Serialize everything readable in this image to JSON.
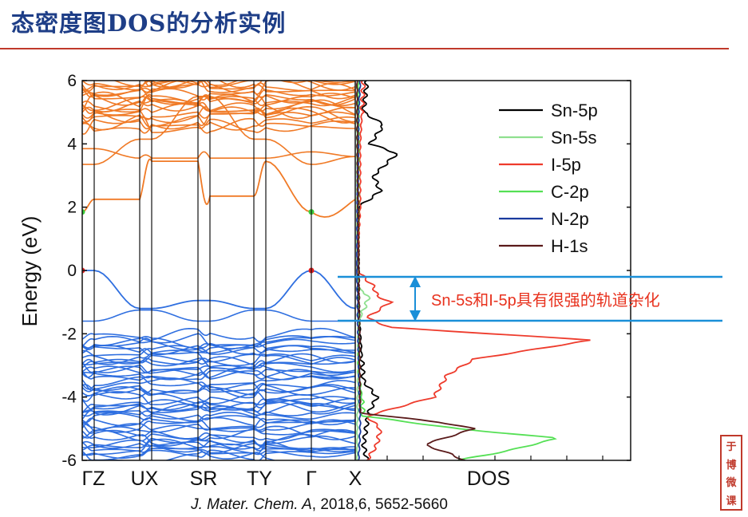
{
  "title": "态密度图DOS的分析实例",
  "citation": {
    "journal": "J. Mater. Chem. A",
    "rest": ", 2018,6, 5652-5660"
  },
  "annotation": "Sn-5s和I-5p具有很强的轨道杂化",
  "seal": [
    "于",
    "博",
    "微",
    "课"
  ],
  "chart_data": [
    {
      "type": "line",
      "ylabel": "Energy (eV)",
      "ylim": [
        -6,
        6
      ],
      "yticks": [
        "6",
        "4",
        "2",
        "0",
        "-2",
        "-4",
        "-6"
      ],
      "kpath": [
        "Γ",
        "Z",
        "U",
        "X",
        "S",
        "R",
        "T",
        "Y",
        "Γ",
        "X"
      ],
      "kpath_labels": [
        "ΓZ",
        "UX",
        "SR",
        "TY",
        "Γ",
        "X"
      ],
      "valence_band_max_eV": 0,
      "conduction_band_min_eV": 1.85,
      "band_colors": {
        "conduction": "#f07a26",
        "valence": "#2f6fe0"
      }
    },
    {
      "type": "line",
      "xlabel": "DOS",
      "ylim": [
        -6,
        6
      ],
      "legend_placement": "top-right",
      "series": [
        {
          "name": "Sn-5p",
          "color": "#000000",
          "points": [
            [
              -6,
              0.3
            ],
            [
              -5.5,
              0.2
            ],
            [
              -4.5,
              0.35
            ],
            [
              -4,
              0.6
            ],
            [
              -3.5,
              0.2
            ],
            [
              -2,
              0.1
            ],
            [
              -1,
              0.05
            ],
            [
              2,
              0.05
            ],
            [
              2.5,
              0.7
            ],
            [
              3,
              0.5
            ],
            [
              3.5,
              1.0
            ],
            [
              3.7,
              1.2
            ],
            [
              4,
              0.4
            ],
            [
              4.6,
              0.8
            ],
            [
              5,
              0.2
            ],
            [
              6,
              0.3
            ]
          ]
        },
        {
          "name": "Sn-5s",
          "color": "#8fe08f",
          "points": [
            [
              -6,
              0
            ],
            [
              -2,
              0.05
            ],
            [
              -1.5,
              0.1
            ],
            [
              -1,
              0.3
            ],
            [
              -0.8,
              0.35
            ],
            [
              -0.6,
              0.1
            ],
            [
              -0.3,
              0
            ],
            [
              6,
              0
            ]
          ]
        },
        {
          "name": "I-5p",
          "color": "#ee3b2c",
          "points": [
            [
              -6,
              0.3
            ],
            [
              -5.5,
              0.6
            ],
            [
              -5,
              0.7
            ],
            [
              -4.6,
              0.3
            ],
            [
              -4,
              2.3
            ],
            [
              -3.3,
              2.7
            ],
            [
              -2.8,
              3.5
            ],
            [
              -2.2,
              7.0
            ],
            [
              -1.8,
              1.0
            ],
            [
              -1.5,
              0.3
            ],
            [
              -1.0,
              1.0
            ],
            [
              -0.8,
              0.6
            ],
            [
              -0.5,
              0.5
            ],
            [
              0,
              0
            ],
            [
              2,
              0.1
            ],
            [
              4,
              0.1
            ],
            [
              6,
              0.2
            ]
          ]
        },
        {
          "name": "C-2p",
          "color": "#55e055",
          "points": [
            [
              -6,
              3.0
            ],
            [
              -5.7,
              4.5
            ],
            [
              -5.3,
              6.0
            ],
            [
              -5,
              3.0
            ],
            [
              -4.6,
              0.2
            ],
            [
              -3,
              0.05
            ],
            [
              6,
              0.05
            ]
          ]
        },
        {
          "name": "N-2p",
          "color": "#1a3a9e",
          "points": [
            [
              -6,
              0.05
            ],
            [
              -5,
              0.1
            ],
            [
              0,
              0
            ],
            [
              5,
              0.05
            ],
            [
              6,
              0.1
            ]
          ]
        },
        {
          "name": "H-1s",
          "color": "#5a1a1a",
          "points": [
            [
              -6,
              3.2
            ],
            [
              -5.8,
              2.8
            ],
            [
              -5.5,
              2.0
            ],
            [
              -5.0,
              3.5
            ],
            [
              -4.8,
              2.5
            ],
            [
              -4.5,
              0.1
            ],
            [
              6,
              0
            ]
          ]
        }
      ]
    }
  ]
}
